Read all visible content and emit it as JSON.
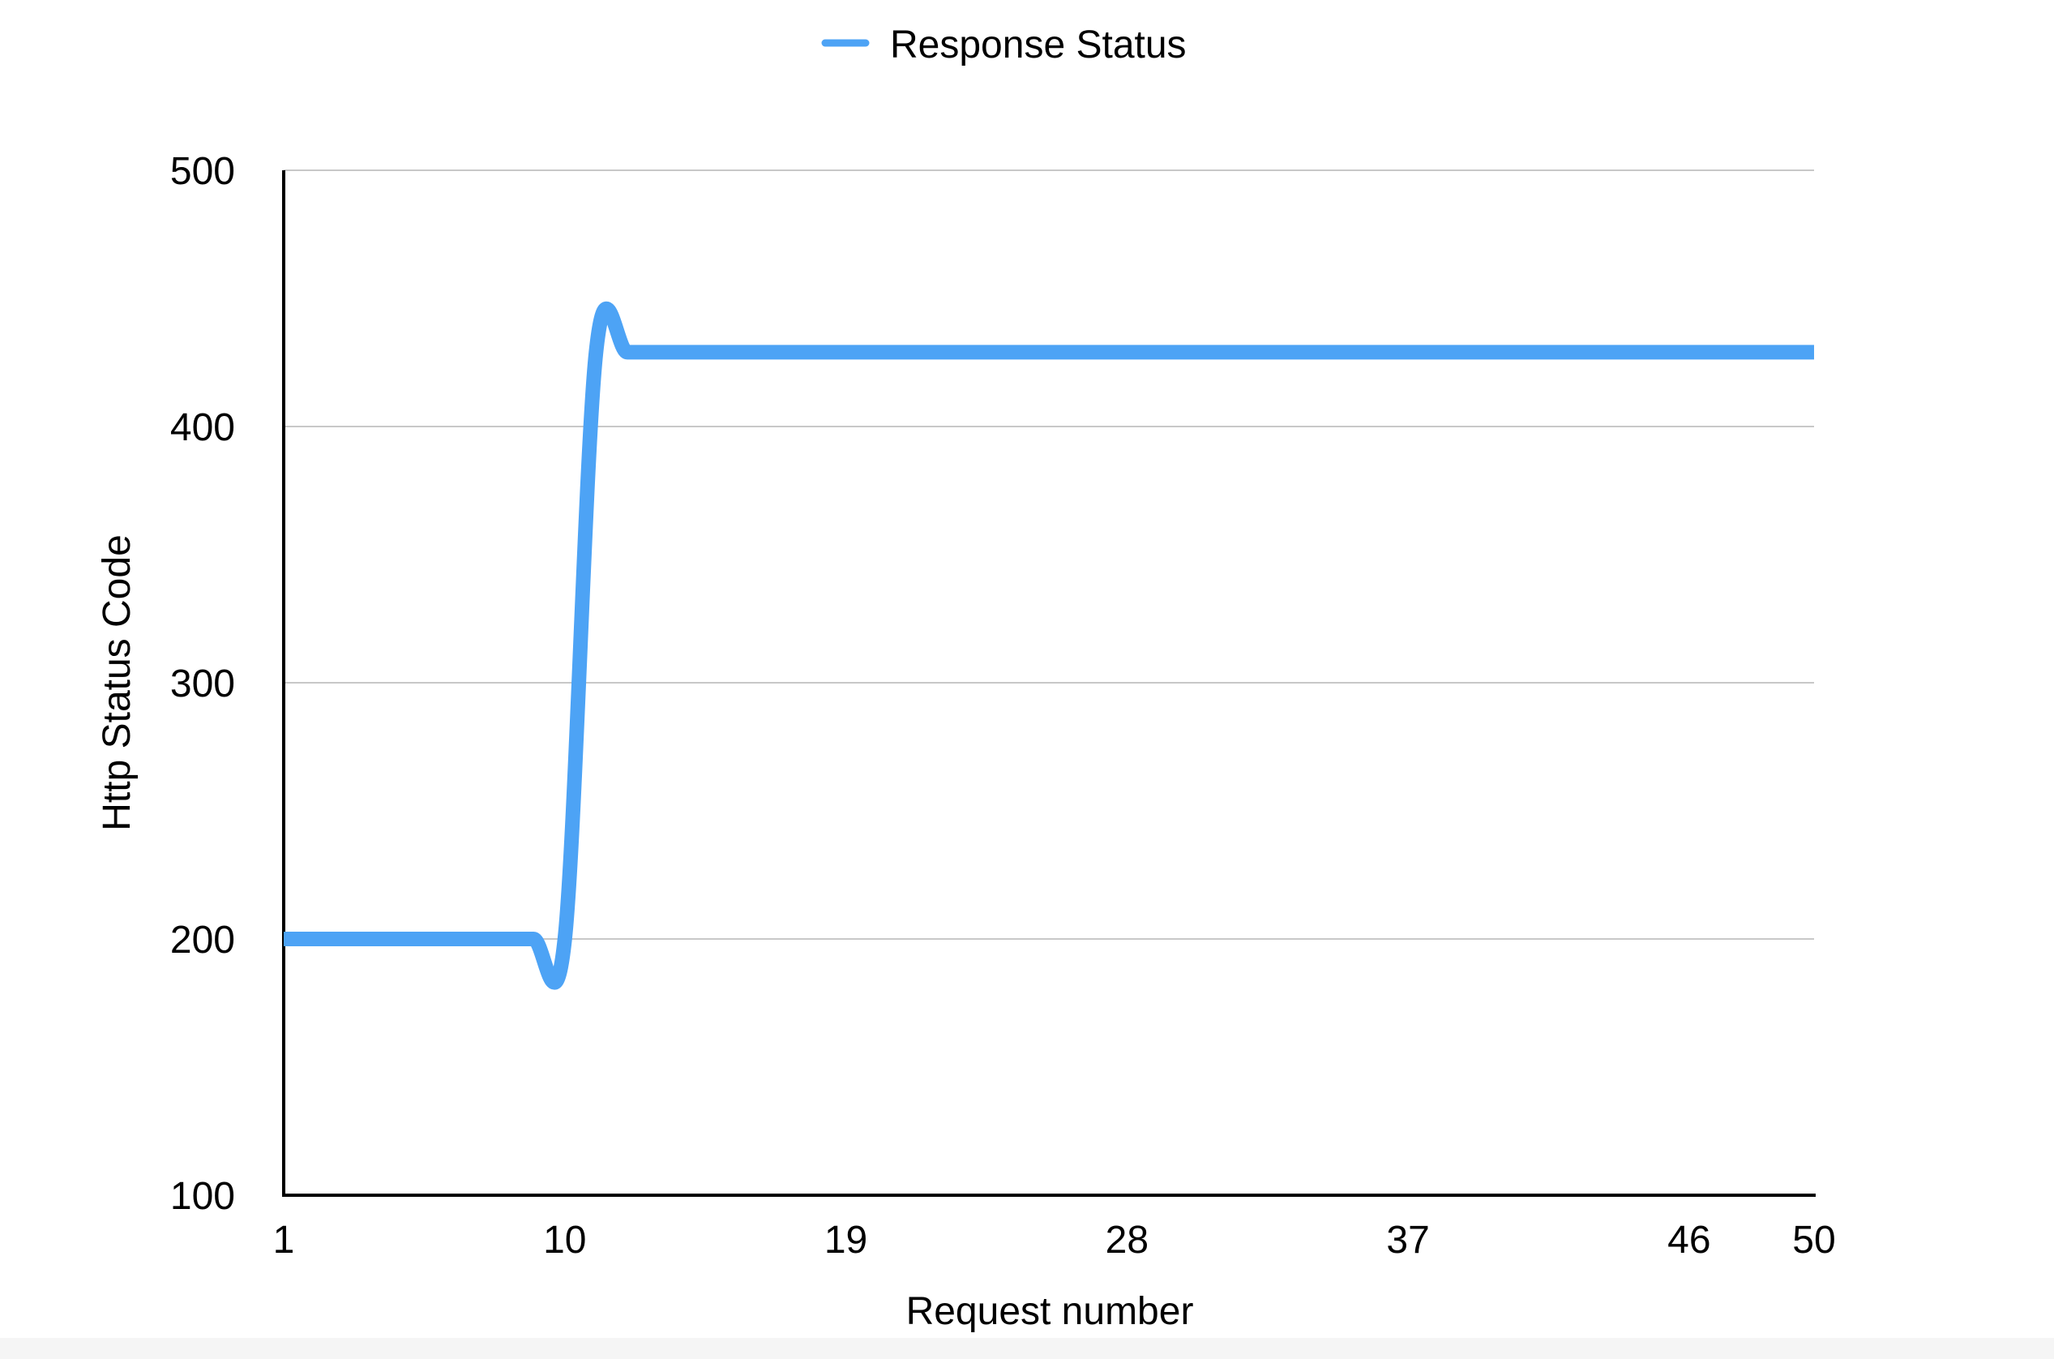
{
  "chart_data": {
    "type": "line",
    "title": "",
    "xlabel": "Request number",
    "ylabel": "Http Status Code",
    "xlim": [
      1,
      50
    ],
    "ylim": [
      100,
      500
    ],
    "x_ticks": [
      1,
      10,
      19,
      28,
      37,
      46,
      50
    ],
    "y_ticks": [
      100,
      200,
      300,
      400,
      500
    ],
    "grid": true,
    "legend_position": "top-center",
    "series": [
      {
        "name": "Response Status",
        "color": "#4da3f5",
        "x": [
          1,
          2,
          3,
          4,
          5,
          6,
          7,
          8,
          9,
          10,
          11,
          12,
          13,
          14,
          15,
          16,
          17,
          18,
          19,
          20,
          21,
          22,
          23,
          24,
          25,
          26,
          27,
          28,
          29,
          30,
          31,
          32,
          33,
          34,
          35,
          36,
          37,
          38,
          39,
          40,
          41,
          42,
          43,
          44,
          45,
          46,
          47,
          48,
          49,
          50
        ],
        "y": [
          200,
          200,
          200,
          200,
          200,
          200,
          200,
          200,
          200,
          200,
          429,
          429,
          429,
          429,
          429,
          429,
          429,
          429,
          429,
          429,
          429,
          429,
          429,
          429,
          429,
          429,
          429,
          429,
          429,
          429,
          429,
          429,
          429,
          429,
          429,
          429,
          429,
          429,
          429,
          429,
          429,
          429,
          429,
          429,
          429,
          429,
          429,
          429,
          429,
          429
        ]
      }
    ]
  },
  "colors": {
    "series_line": "#4da3f5",
    "grid": "#c8c8c8",
    "axis": "#000000"
  }
}
